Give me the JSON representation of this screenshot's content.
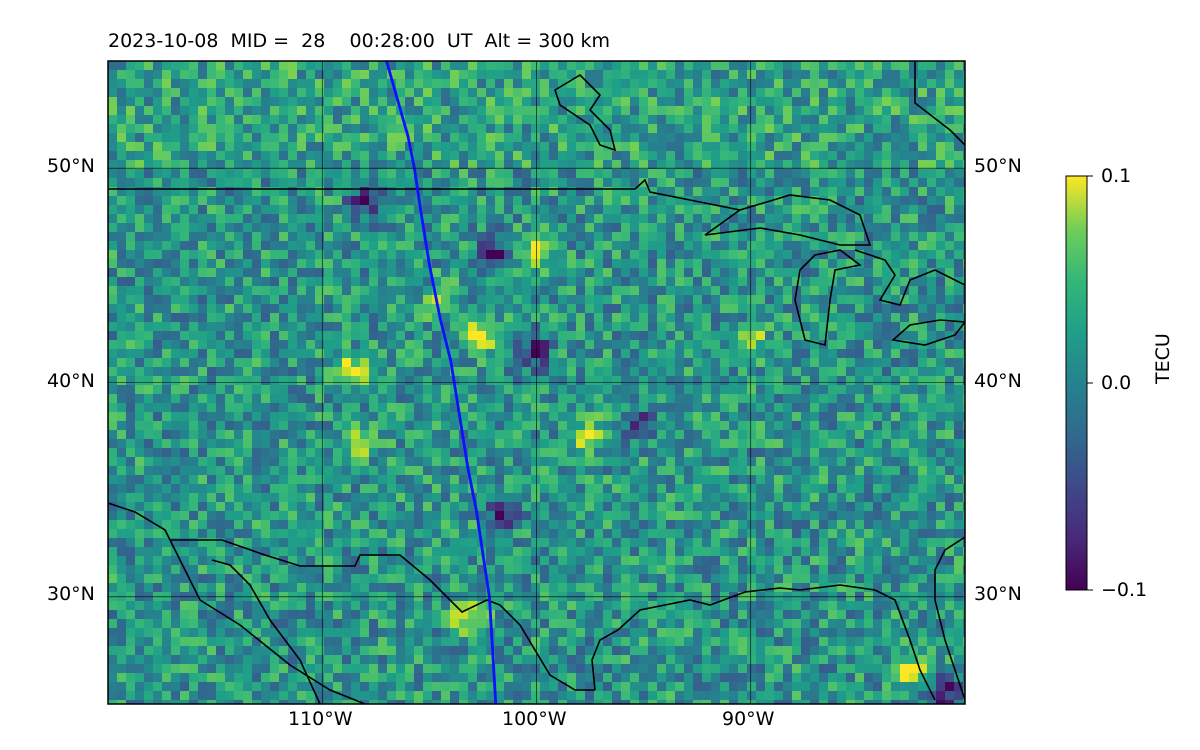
{
  "title": "2023-10-08  MID =  28    00:28:00  UT  Alt = 300 km",
  "chart_data": {
    "type": "heatmap",
    "title": "2023-10-08  MID =  28    00:28:00  UT  Alt = 300 km",
    "xlabel": "",
    "ylabel": "",
    "x_range": [
      -120,
      -80
    ],
    "y_range": [
      25,
      55
    ],
    "x_ticks": [
      -110,
      -100,
      -90
    ],
    "x_tick_labels": [
      "110°W",
      "100°W",
      "90°W"
    ],
    "y_ticks": [
      30,
      40,
      50
    ],
    "y_tick_labels": [
      "30°N",
      "40°N",
      "50°N"
    ],
    "grid": true,
    "colormap": "viridis",
    "colorbar": {
      "label": "TECU",
      "range": [
        -0.1,
        0.1
      ],
      "ticks": [
        0.1,
        0.0,
        -0.1
      ],
      "tick_labels": [
        "0.1",
        "0.0",
        "−0.1"
      ]
    },
    "track": {
      "color": "#1010ff",
      "lon": [
        -107.0,
        -106.0,
        -105.7,
        -105.4,
        -105.0,
        -104.5,
        -104.0,
        -103.6,
        -103.2,
        -102.8,
        -102.5,
        -102.2,
        -101.9
      ],
      "lat": [
        55.0,
        51.5,
        50.0,
        48.0,
        45.5,
        43.0,
        41.0,
        38.5,
        36.0,
        34.0,
        32.0,
        30.0,
        25.0
      ]
    },
    "hotspots": [
      {
        "lon": -103.2,
        "lat": 29.2,
        "value": 0.1
      },
      {
        "lon": -104.5,
        "lat": 43.8,
        "value": 0.1
      },
      {
        "lon": -108.5,
        "lat": 40.5,
        "value": 0.1
      },
      {
        "lon": -102.5,
        "lat": 42.3,
        "value": 0.1
      },
      {
        "lon": -108.0,
        "lat": 37.3,
        "value": 0.08
      },
      {
        "lon": -97.6,
        "lat": 37.5,
        "value": 0.1
      },
      {
        "lon": -100.0,
        "lat": 46.2,
        "value": 0.09
      },
      {
        "lon": -90.0,
        "lat": 42.0,
        "value": 0.08
      },
      {
        "lon": -82.5,
        "lat": 26.5,
        "value": 0.1
      }
    ],
    "coldspots": [
      {
        "lon": -101.5,
        "lat": 34.0,
        "value": -0.1
      },
      {
        "lon": -102.0,
        "lat": 46.0,
        "value": -0.1
      },
      {
        "lon": -108.0,
        "lat": 48.5,
        "value": -0.09
      },
      {
        "lon": -100.0,
        "lat": 41.5,
        "value": -0.09
      },
      {
        "lon": -95.0,
        "lat": 38.0,
        "value": -0.08
      },
      {
        "lon": -81.0,
        "lat": 25.5,
        "value": -0.1
      }
    ]
  }
}
